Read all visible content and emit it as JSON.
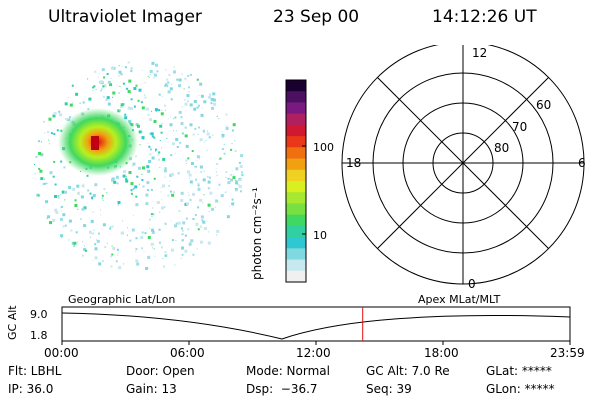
{
  "header": {
    "title": "Ultraviolet Imager",
    "date": "23 Sep 00",
    "time": "14:12:26 UT"
  },
  "colorbar": {
    "unit_label": "photon cm⁻²s⁻¹",
    "tick_labels": [
      "100",
      "10"
    ],
    "colors": [
      "#1a0030",
      "#4b1060",
      "#7a1a80",
      "#b02060",
      "#d01830",
      "#e83818",
      "#f07010",
      "#f0a010",
      "#f0d020",
      "#d8f020",
      "#a8e830",
      "#78e040",
      "#40d860",
      "#30d0a0",
      "#30c8d0",
      "#80d8e0",
      "#c8e8f0",
      "#f0f0f0"
    ]
  },
  "polar_plot": {
    "mlt_labels": {
      "top": "12",
      "right": "6",
      "bottom": "0",
      "left": "18"
    },
    "lat_labels": [
      "60",
      "70",
      "80"
    ]
  },
  "timeline": {
    "ylabel": "GC Alt",
    "y_ticks": [
      "9.0",
      "1.8"
    ],
    "left_label": "Geographic Lat/Lon",
    "right_label": "Apex MLat/MLT",
    "x_ticks": [
      "00:00",
      "06:00",
      "12:00",
      "18:00",
      "23:59"
    ],
    "current_time_fraction": 0.592
  },
  "status": {
    "flt": "Flt: LBHL",
    "ip": "IP: 36.0",
    "door": "Door: Open",
    "gain": "Gain: 13",
    "mode": "Mode: Normal",
    "dsp": "Dsp:  −36.7",
    "gc_alt": "GC Alt: 7.0 Re",
    "seq": "Seq: 39",
    "glat": "GLat: *****",
    "glon": "GLon: *****"
  }
}
